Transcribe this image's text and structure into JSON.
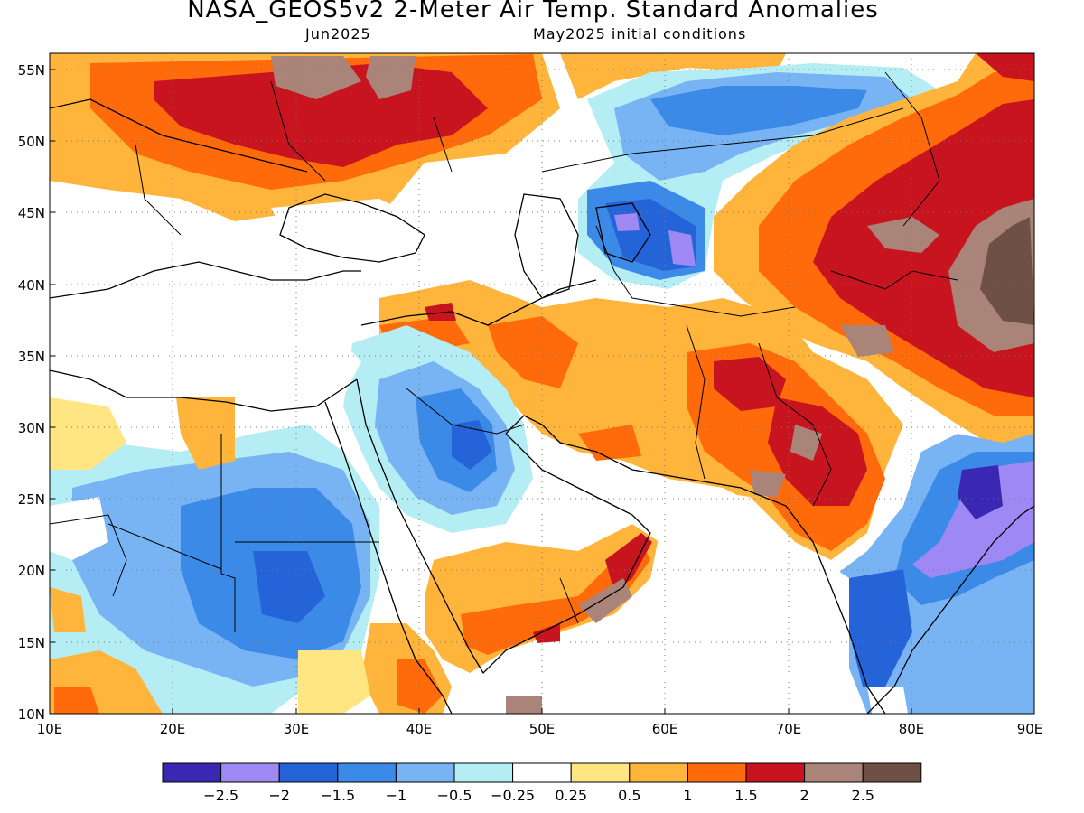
{
  "title": "NASA_GEOS5v2 2-Meter Air Temp. Standard Anomalies",
  "subtitle_left": "Jun2025",
  "subtitle_right": "May2025 initial conditions",
  "lat_labels": [
    "10N",
    "15N",
    "20N",
    "25N",
    "30N",
    "35N",
    "40N",
    "45N",
    "50N",
    "55N"
  ],
  "lon_labels": [
    "10E",
    "20E",
    "30E",
    "40E",
    "50E",
    "60E",
    "70E",
    "80E",
    "90E"
  ],
  "colorbar": {
    "colors": [
      "#3a28b4",
      "#9e88f4",
      "#2464d8",
      "#3c8ae8",
      "#78b4f4",
      "#b4eef4",
      "#ffffff",
      "#ffe682",
      "#ffb43c",
      "#ff6a0a",
      "#c8141e",
      "#aa8478",
      "#6e5046"
    ],
    "labels": [
      "−2.5",
      "−2",
      "−1.5",
      "−1",
      "−0.5",
      "−0.25",
      "0.25",
      "0.5",
      "1",
      "1.5",
      "2",
      "2.5"
    ]
  }
}
